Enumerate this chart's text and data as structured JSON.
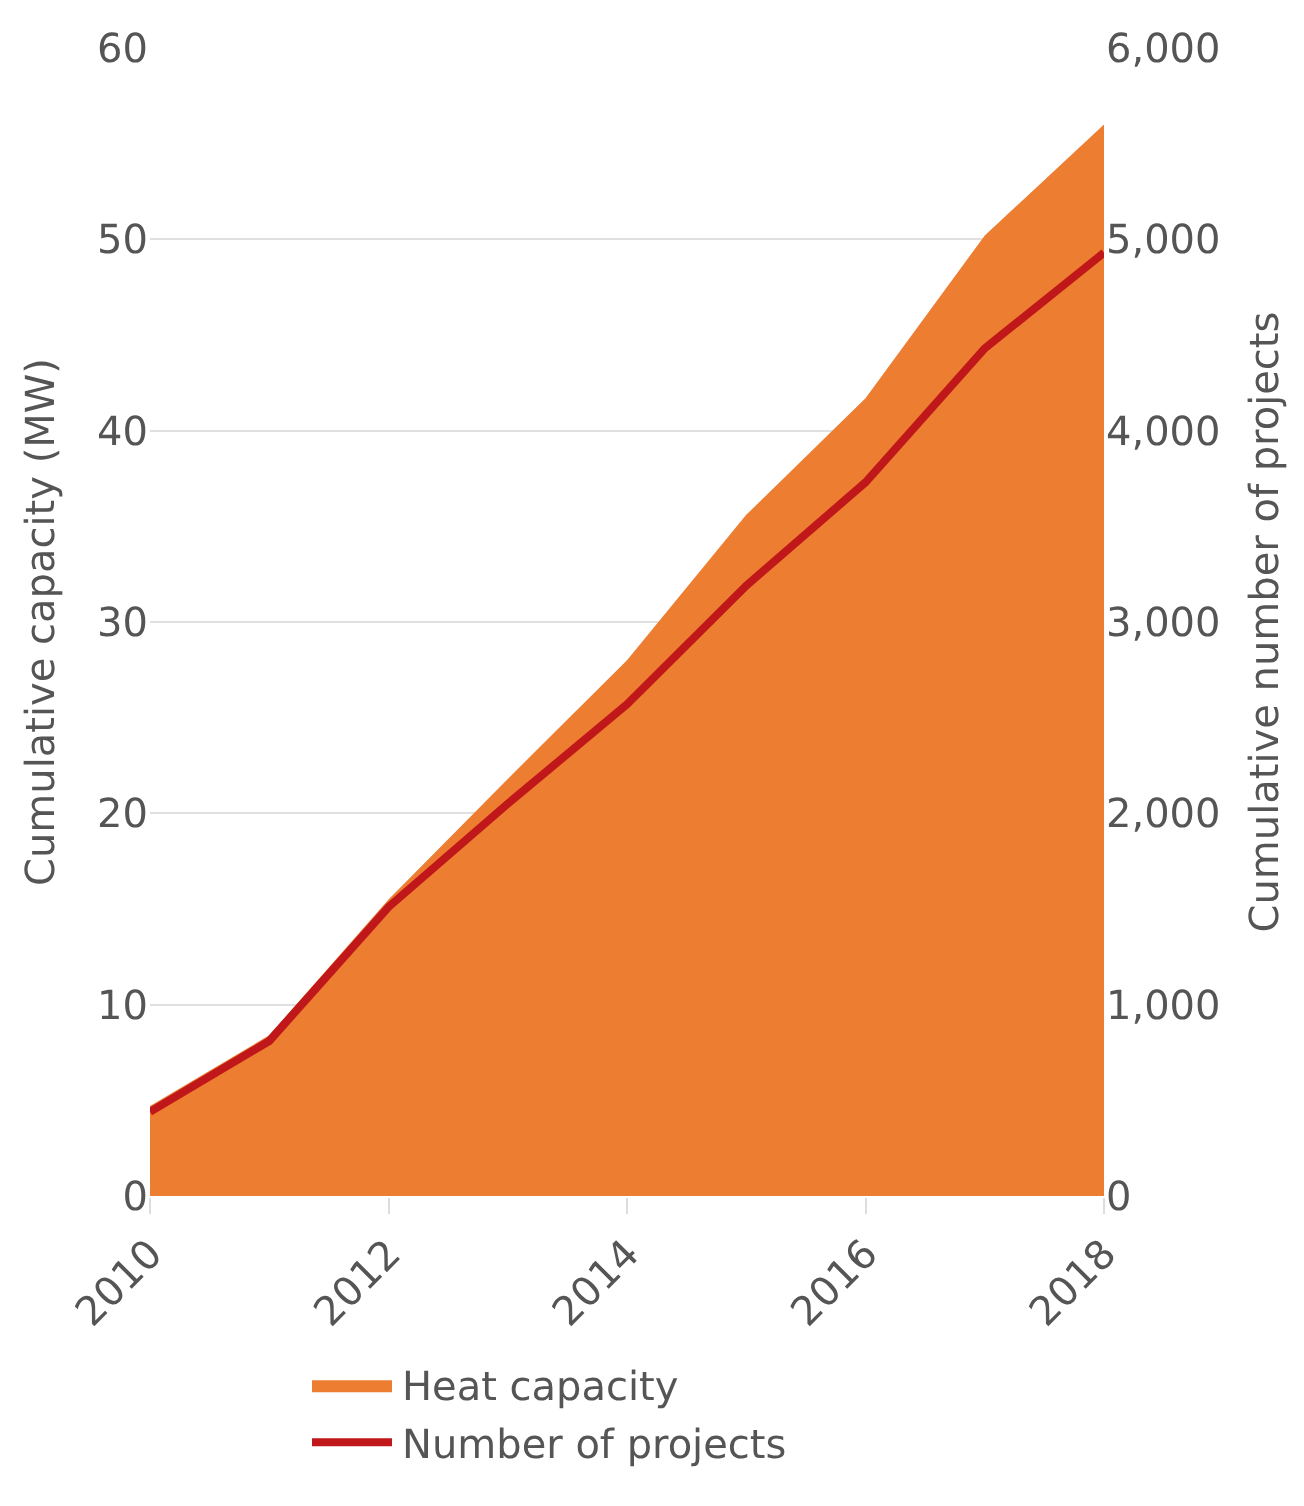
{
  "chart_data": {
    "type": "area",
    "ylabel": "Cumulative capacity (MW)",
    "y2label": "Cumulative number of projects",
    "x": [
      2010,
      2011,
      2012,
      2013,
      2014,
      2015,
      2016,
      2017,
      2018
    ],
    "series": [
      {
        "name": "Heat capacity",
        "color": "#ed7d31",
        "values": [
          4.7,
          8.4,
          15.5,
          21.8,
          28.0,
          35.6,
          41.7,
          50.2,
          56.0
        ]
      },
      {
        "name": "Number of projects",
        "type": "line",
        "axis": "y2",
        "color": "#c0181a",
        "values": [
          440,
          810,
          1510,
          2050,
          2570,
          3190,
          3730,
          4430,
          4930
        ]
      }
    ],
    "xlim": [
      2010,
      2018
    ],
    "xticks": [
      2010,
      2012,
      2014,
      2016,
      2018
    ],
    "ylim": [
      0,
      60
    ],
    "yticks": [
      0,
      10,
      20,
      30,
      40,
      50,
      60
    ],
    "y2lim": [
      0,
      6000
    ],
    "y2ticks": [
      {
        "value": 0,
        "label": "0"
      },
      {
        "value": 1000,
        "label": "1,000"
      },
      {
        "value": 2000,
        "label": "2,000"
      },
      {
        "value": 3000,
        "label": "3,000"
      },
      {
        "value": 4000,
        "label": "4,000"
      },
      {
        "value": 5000,
        "label": "5,000"
      },
      {
        "value": 6000,
        "label": "6,000"
      }
    ],
    "grid": "y",
    "legend": "bottom"
  }
}
